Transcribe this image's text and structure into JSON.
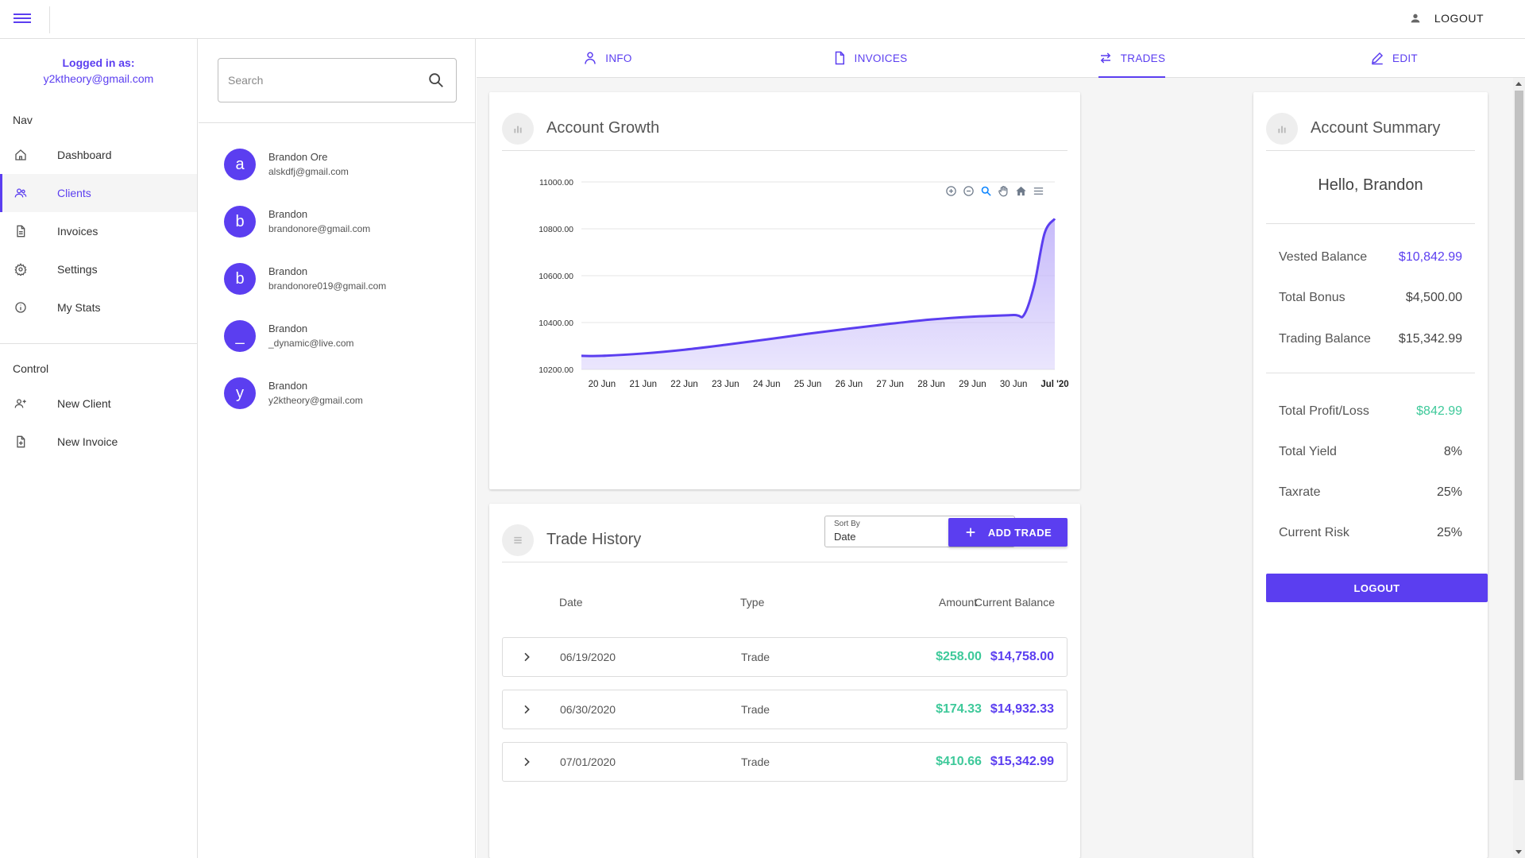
{
  "colors": {
    "accent": "#5b3ef0",
    "positive": "#3ec99a",
    "chart_fill": "#c4b7fa"
  },
  "topbar": {
    "logout_label": "LOGOUT",
    "menu_icon": "hamburger-menu-icon",
    "user_icon": "account-icon"
  },
  "sidebar": {
    "logged_in_label": "Logged in as:",
    "logged_in_email": "y2ktheory@gmail.com",
    "nav_title": "Nav",
    "nav_items": [
      {
        "label": "Dashboard",
        "icon": "home-icon"
      },
      {
        "label": "Clients",
        "icon": "people-icon"
      },
      {
        "label": "Invoices",
        "icon": "document-icon"
      },
      {
        "label": "Settings",
        "icon": "gear-icon"
      },
      {
        "label": "My Stats",
        "icon": "info-icon"
      }
    ],
    "control_title": "Control",
    "control_items": [
      {
        "label": "New Client",
        "icon": "add-person-icon"
      },
      {
        "label": "New Invoice",
        "icon": "add-document-icon"
      }
    ]
  },
  "clients": {
    "search_placeholder": "Search",
    "list": [
      {
        "initial": "a",
        "name": "Brandon Ore",
        "email": "alskdfj@gmail.com"
      },
      {
        "initial": "b",
        "name": "Brandon",
        "email": "brandonore@gmail.com"
      },
      {
        "initial": "b",
        "name": "Brandon",
        "email": "brandonore019@gmail.com"
      },
      {
        "initial": "_",
        "name": "Brandon",
        "email": "_dynamic@live.com"
      },
      {
        "initial": "y",
        "name": "Brandon",
        "email": "y2ktheory@gmail.com"
      }
    ]
  },
  "tabs": [
    {
      "label": "INFO",
      "icon": "person-icon"
    },
    {
      "label": "INVOICES",
      "icon": "file-icon"
    },
    {
      "label": "TRADES",
      "icon": "swap-arrows-icon",
      "active": true
    },
    {
      "label": "EDIT",
      "icon": "pencil-icon"
    }
  ],
  "growth": {
    "title": "Account Growth"
  },
  "chart_data": {
    "type": "area",
    "title": "Account Growth",
    "xlabel": "",
    "ylabel": "",
    "y_tick_labels": [
      "11000.00",
      "10800.00",
      "10600.00",
      "10400.00",
      "10200.00"
    ],
    "ylim": [
      10200,
      11000
    ],
    "x_tick_labels": [
      "20 Jun",
      "21 Jun",
      "22 Jun",
      "23 Jun",
      "24 Jun",
      "25 Jun",
      "26 Jun",
      "27 Jun",
      "28 Jun",
      "29 Jun",
      "30 Jun",
      "Jul '20"
    ],
    "x": [
      "19 Jun 12:00",
      "20 Jun",
      "21 Jun",
      "22 Jun",
      "23 Jun",
      "24 Jun",
      "25 Jun",
      "26 Jun",
      "27 Jun",
      "28 Jun",
      "29 Jun",
      "30 Jun",
      "30 Jun 06:00",
      "30 Jun 12:00",
      "30 Jun 18:00",
      "Jul '20"
    ],
    "values": [
      10258,
      10258,
      10268,
      10284,
      10305,
      10328,
      10352,
      10374,
      10395,
      10413,
      10425,
      10432,
      10432,
      10560,
      10780,
      10843
    ],
    "grid": true,
    "legend": "none",
    "toolbar_icons": [
      "zoom-in-icon",
      "zoom-out-icon",
      "zoom-select-icon",
      "pan-hand-icon",
      "reset-home-icon",
      "chart-menu-icon"
    ]
  },
  "history": {
    "title": "Trade History",
    "sort_label": "Sort By",
    "sort_value": "Date",
    "add_label": "ADD TRADE",
    "columns": {
      "date": "Date",
      "type": "Type",
      "amount": "Amount",
      "balance": "Current Balance"
    },
    "rows": [
      {
        "date": "06/19/2020",
        "type": "Trade",
        "amount": "$258.00",
        "balance": "$14,758.00"
      },
      {
        "date": "06/30/2020",
        "type": "Trade",
        "amount": "$174.33",
        "balance": "$14,932.33"
      },
      {
        "date": "07/01/2020",
        "type": "Trade",
        "amount": "$410.66",
        "balance": "$15,342.99"
      }
    ]
  },
  "summary": {
    "title": "Account Summary",
    "greeting": "Hello, Brandon",
    "rows_top": [
      {
        "label": "Vested Balance",
        "value": "$10,842.99",
        "tone": "purple"
      },
      {
        "label": "Total Bonus",
        "value": "$4,500.00",
        "tone": ""
      },
      {
        "label": "Trading Balance",
        "value": "$15,342.99",
        "tone": ""
      }
    ],
    "rows_bottom": [
      {
        "label": "Total Profit/Loss",
        "value": "$842.99",
        "tone": "green"
      },
      {
        "label": "Total Yield",
        "value": "8%",
        "tone": ""
      },
      {
        "label": "Taxrate",
        "value": "25%",
        "tone": ""
      },
      {
        "label": "Current Risk",
        "value": "25%",
        "tone": ""
      }
    ],
    "logout_label": "LOGOUT"
  }
}
